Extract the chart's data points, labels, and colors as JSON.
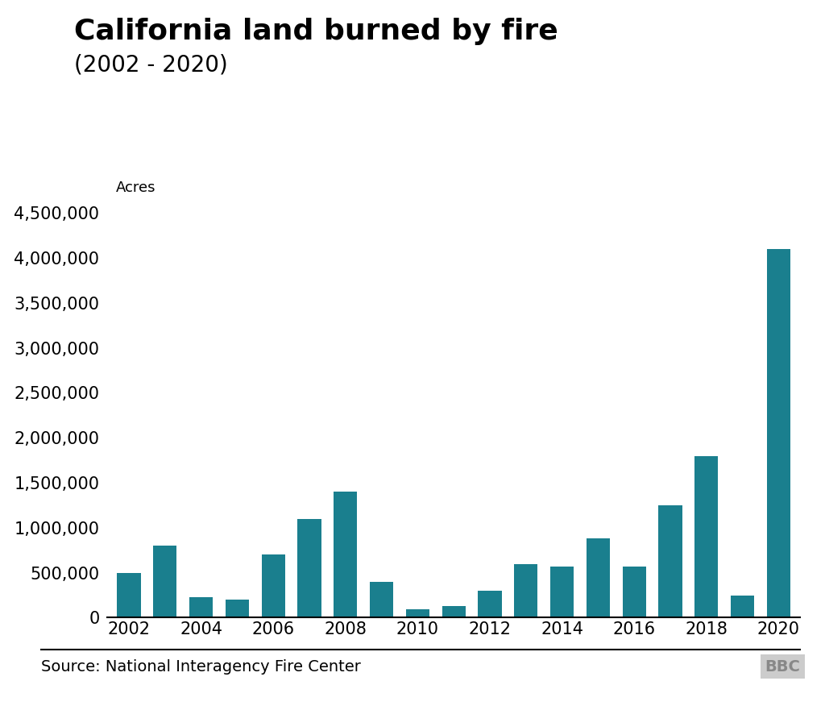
{
  "title": "California land burned by fire",
  "subtitle": "(2002 - 2020)",
  "ylabel": "Acres",
  "source": "Source: National Interagency Fire Center",
  "bbc_label": "BBC",
  "bar_color": "#1a7f8e",
  "background_color": "#ffffff",
  "years": [
    2002,
    2003,
    2004,
    2005,
    2006,
    2007,
    2008,
    2009,
    2010,
    2011,
    2012,
    2013,
    2014,
    2015,
    2016,
    2017,
    2018,
    2019,
    2020
  ],
  "values": [
    500000,
    800000,
    230000,
    200000,
    700000,
    1100000,
    1400000,
    400000,
    90000,
    130000,
    300000,
    600000,
    570000,
    880000,
    570000,
    1250000,
    1800000,
    250000,
    4100000
  ],
  "ylim": [
    0,
    4500000
  ],
  "yticks": [
    0,
    500000,
    1000000,
    1500000,
    2000000,
    2500000,
    3000000,
    3500000,
    4000000,
    4500000
  ],
  "title_fontsize": 26,
  "subtitle_fontsize": 20,
  "axis_fontsize": 15,
  "source_fontsize": 14,
  "ylabel_fontsize": 13
}
